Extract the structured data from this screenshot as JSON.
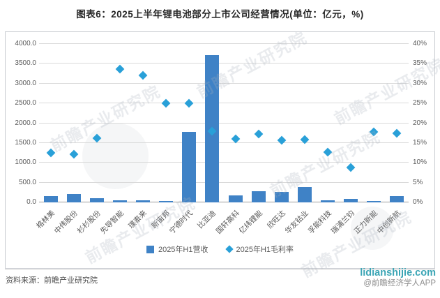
{
  "title": "图表6：2025上半年锂电池部分上市公司经营情况(单位：亿元，%)",
  "chart_data": {
    "type": "bar",
    "subtype": "combo-bar-scatter",
    "categories": [
      "格林美",
      "中伟股份",
      "杉杉股份",
      "先导智能",
      "璞泰来",
      "新宙邦",
      "宁德时代",
      "比亚迪",
      "国轩高科",
      "亿纬锂能",
      "欣旺达",
      "华友钴业",
      "孚能科技",
      "瑞浦兰钧",
      "正力新能",
      "中创新航"
    ],
    "series": [
      {
        "name": "2025年H1营收",
        "type": "bar",
        "axis": "left",
        "unit": "亿元",
        "values": [
          160,
          220,
          100,
          60,
          60,
          40,
          1780,
          3710,
          170,
          280,
          270,
          380,
          45,
          95,
          30,
          165
        ]
      },
      {
        "name": "2025年H1毛利率",
        "type": "scatter",
        "axis": "right",
        "unit": "%",
        "values": [
          12.5,
          12.1,
          16.3,
          33.6,
          32.0,
          25.0,
          25.0,
          17.9,
          16.1,
          17.2,
          15.7,
          15.8,
          12.7,
          8.8,
          17.8,
          17.5
        ]
      }
    ],
    "left_axis": {
      "min": 0,
      "max": 4000,
      "step": 500,
      "ticks": [
        "0.0",
        "500.0",
        "1000.0",
        "1500.0",
        "2000.0",
        "2500.0",
        "3000.0",
        "3500.0",
        "4000.0"
      ]
    },
    "right_axis": {
      "min": 0,
      "max": 40,
      "step": 5,
      "ticks": [
        "0%",
        "5%",
        "10%",
        "15%",
        "20%",
        "25%",
        "30%",
        "35%",
        "40%"
      ]
    },
    "grid": true,
    "legend_position": "bottom"
  },
  "colors": {
    "bar_fill": "#3F82C6",
    "marker_fill": "#29A0D8",
    "site_text": "#3BA5B5"
  },
  "watermark": {
    "text": "前瞻产业研究院"
  },
  "footer": {
    "source": "资料来源：前瞻产业研究院",
    "site": "lidianshijie.com",
    "credit": "@前瞻经济学人APP"
  }
}
